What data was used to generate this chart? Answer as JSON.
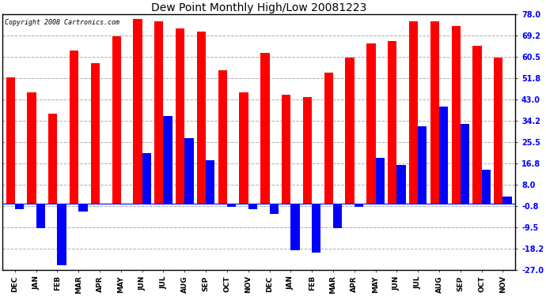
{
  "title": "Dew Point Monthly High/Low 20081223",
  "copyright": "Copyright 2008 Cartronics.com",
  "months": [
    "DEC",
    "JAN",
    "FEB",
    "MAR",
    "APR",
    "MAY",
    "JUN",
    "JUL",
    "AUG",
    "SEP",
    "OCT",
    "NOV",
    "DEC",
    "JAN",
    "FEB",
    "MAR",
    "APR",
    "MAY",
    "JUN",
    "JUL",
    "AUG",
    "SEP",
    "OCT",
    "NOV"
  ],
  "highs": [
    52,
    46,
    37,
    63,
    58,
    69,
    76,
    75,
    72,
    71,
    55,
    46,
    62,
    45,
    44,
    54,
    60,
    66,
    67,
    75,
    75,
    73,
    65,
    60
  ],
  "lows": [
    -2,
    -10,
    -25,
    -3,
    0,
    0,
    21,
    36,
    27,
    18,
    -1,
    -2,
    -4,
    -19,
    -20,
    -10,
    -1,
    19,
    16,
    32,
    40,
    33,
    14,
    3
  ],
  "bar_color_high": "#ff0000",
  "bar_color_low": "#0000ff",
  "background_color": "#ffffff",
  "grid_color": "#b0b0b0",
  "yticks": [
    78.0,
    69.2,
    60.5,
    51.8,
    43.0,
    34.2,
    25.5,
    16.8,
    8.0,
    -0.8,
    -9.5,
    -18.2,
    -27.0
  ],
  "ylim": [
    -27.0,
    78.0
  ],
  "bar_width": 0.42
}
